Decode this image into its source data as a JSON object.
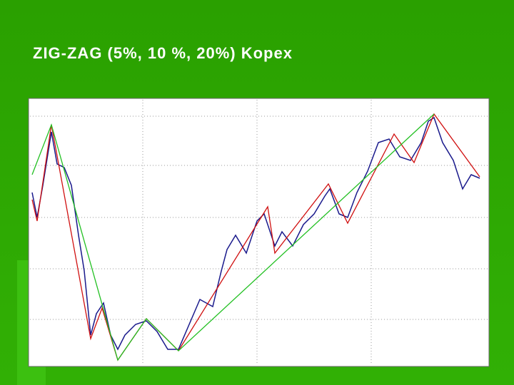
{
  "chart_data": {
    "type": "line",
    "title": "ZIG-ZAG (5%, 10 %, 20%) Kopex",
    "xlim": [
      0,
      641
    ],
    "ylim": [
      0,
      372
    ],
    "series": [
      {
        "color": "#1a1a8c",
        "x": [
          3,
          10,
          18,
          30,
          38,
          48,
          58,
          68,
          76,
          85,
          93,
          103,
          113,
          123,
          133,
          148,
          163,
          178,
          193,
          208,
          223,
          238,
          256,
          268,
          276,
          288,
          303,
          318,
          328,
          343,
          353,
          368,
          383,
          398,
          413,
          420,
          433,
          445,
          458,
          473,
          488,
          503,
          518,
          533,
          548,
          558,
          566,
          578,
          593,
          606,
          618,
          630
        ],
        "values": [
          242,
          207,
          252,
          327,
          282,
          277,
          252,
          182,
          132,
          42,
          72,
          87,
          42,
          22,
          42,
          57,
          62,
          47,
          22,
          22,
          57,
          92,
          82,
          132,
          162,
          182,
          157,
          202,
          212,
          167,
          187,
          167,
          197,
          212,
          237,
          247,
          212,
          207,
          242,
          272,
          312,
          317,
          292,
          287,
          312,
          342,
          347,
          312,
          287,
          247,
          267,
          262
        ]
      },
      {
        "color": "#d01010",
        "x": [
          3,
          10,
          30,
          85,
          101,
          123,
          163,
          208,
          333,
          343,
          418,
          445,
          510,
          538,
          566,
          630
        ],
        "values": [
          232,
          202,
          337,
          37,
          80,
          7,
          65,
          20,
          222,
          157,
          254,
          199,
          324,
          284,
          352,
          264
        ]
      },
      {
        "color": "#22c022",
        "x": [
          3,
          30,
          123,
          163,
          208,
          566
        ],
        "values": [
          267,
          337,
          7,
          65,
          20,
          352
        ]
      }
    ]
  }
}
